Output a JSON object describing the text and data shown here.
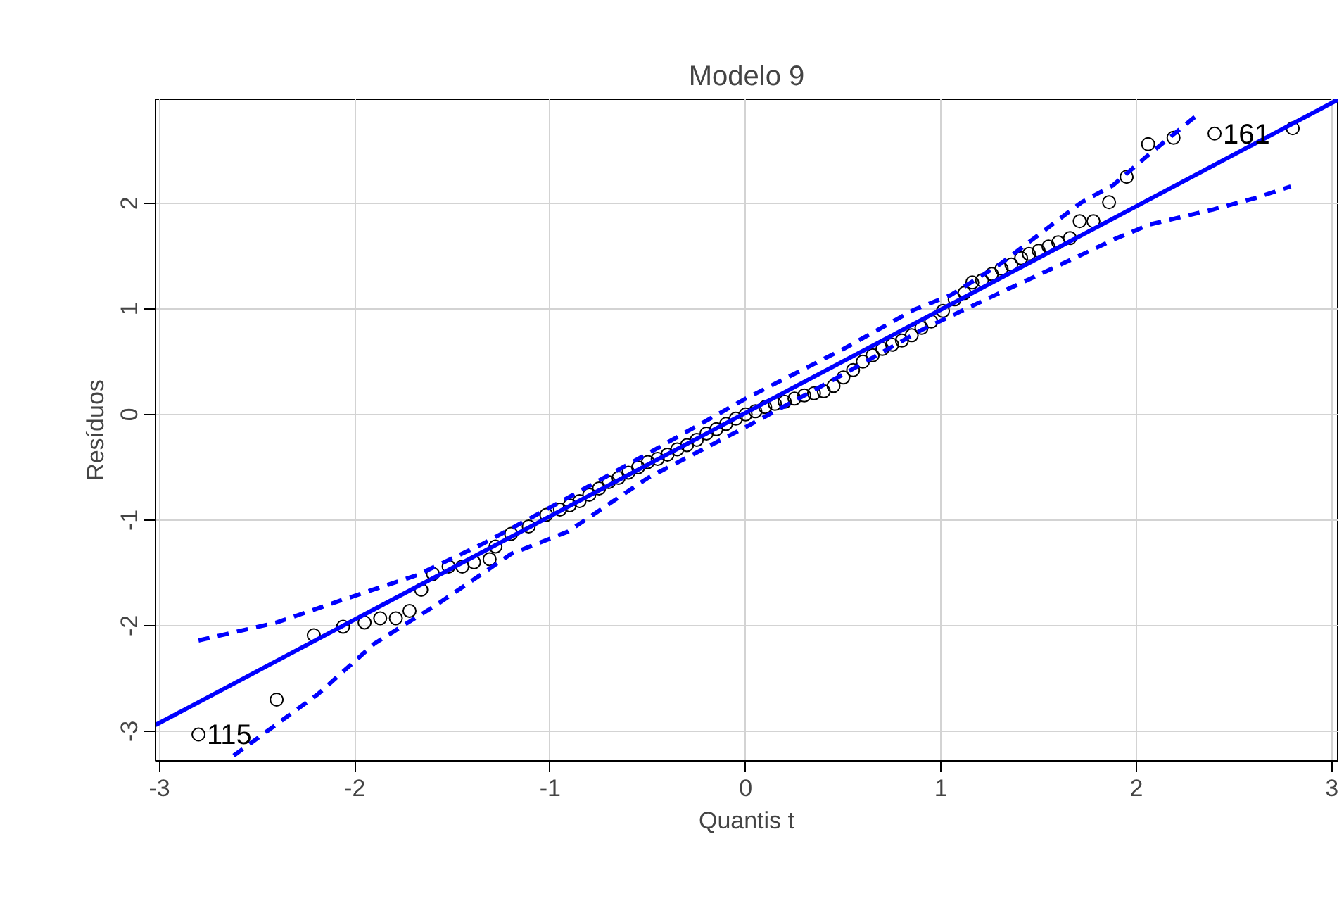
{
  "chart_data": {
    "type": "scatter",
    "title": "Modelo 9",
    "xlabel": "Quantis t",
    "ylabel": "Resíduos",
    "xlim": [
      -3.02,
      3.03
    ],
    "ylim": [
      -3.28,
      2.985
    ],
    "xticks": [
      -3,
      -2,
      -1,
      0,
      1,
      2,
      3
    ],
    "yticks": [
      -3,
      -2,
      -1,
      0,
      1,
      2
    ],
    "grid": true,
    "marker": "circle",
    "series": [
      {
        "color": "#000000",
        "x": [
          -2.8,
          -2.4,
          -2.21,
          -2.06,
          -1.95,
          -1.87,
          -1.79,
          -1.72,
          -1.66,
          -1.6,
          -1.52,
          -1.45,
          -1.39,
          -1.31,
          -1.28,
          -1.2,
          -1.11,
          -1.02,
          -0.95,
          -0.9,
          -0.85,
          -0.8,
          -0.75,
          -0.7,
          -0.65,
          -0.6,
          -0.55,
          -0.5,
          -0.45,
          -0.4,
          -0.35,
          -0.3,
          -0.25,
          -0.2,
          -0.15,
          -0.1,
          -0.05,
          0.0,
          0.05,
          0.1,
          0.15,
          0.2,
          0.25,
          0.3,
          0.35,
          0.4,
          0.45,
          0.5,
          0.55,
          0.6,
          0.65,
          0.7,
          0.75,
          0.8,
          0.85,
          0.9,
          0.95,
          1.01,
          1.07,
          1.12,
          1.16,
          1.21,
          1.26,
          1.31,
          1.36,
          1.41,
          1.45,
          1.5,
          1.55,
          1.6,
          1.66,
          1.71,
          1.78,
          1.86,
          1.95,
          2.06,
          2.19,
          2.4,
          2.8
        ],
        "values": [
          -3.03,
          -2.7,
          -2.09,
          -2.01,
          -1.97,
          -1.93,
          -1.93,
          -1.86,
          -1.66,
          -1.51,
          -1.44,
          -1.44,
          -1.4,
          -1.37,
          -1.25,
          -1.13,
          -1.06,
          -0.95,
          -0.9,
          -0.86,
          -0.82,
          -0.76,
          -0.7,
          -0.64,
          -0.6,
          -0.55,
          -0.5,
          -0.45,
          -0.42,
          -0.38,
          -0.33,
          -0.29,
          -0.24,
          -0.18,
          -0.14,
          -0.09,
          -0.04,
          0.0,
          0.03,
          0.07,
          0.1,
          0.12,
          0.15,
          0.18,
          0.2,
          0.22,
          0.27,
          0.35,
          0.42,
          0.5,
          0.56,
          0.62,
          0.66,
          0.7,
          0.75,
          0.82,
          0.88,
          0.98,
          1.09,
          1.15,
          1.25,
          1.27,
          1.33,
          1.38,
          1.42,
          1.48,
          1.52,
          1.55,
          1.59,
          1.63,
          1.67,
          1.83,
          1.83,
          2.01,
          2.25,
          2.56,
          2.62,
          2.66,
          2.71
        ]
      },
      {
        "type": "line",
        "color": "#0000ff",
        "line_style": "solid",
        "marker": "none",
        "x": [
          -3.02,
          3.03
        ],
        "values": [
          -2.94,
          2.98
        ]
      },
      {
        "type": "line",
        "color": "#0000ff",
        "line_style": "dashed",
        "marker": "none",
        "x": [
          -2.8,
          -2.4,
          -2.07,
          -1.68,
          -1.34,
          -1.0,
          -0.5,
          0.0,
          0.5,
          0.86,
          1.05,
          1.3,
          1.47,
          1.72,
          1.88,
          2.05,
          2.32
        ],
        "values": [
          -2.14,
          -1.97,
          -1.76,
          -1.52,
          -1.22,
          -0.88,
          -0.37,
          0.15,
          0.62,
          0.99,
          1.13,
          1.42,
          1.66,
          2.01,
          2.17,
          2.44,
          2.85
        ]
      },
      {
        "type": "line",
        "color": "#0000ff",
        "line_style": "dashed",
        "marker": "none",
        "x": [
          -2.62,
          -2.19,
          -1.9,
          -1.58,
          -1.2,
          -0.91,
          -0.5,
          0.0,
          0.5,
          0.9,
          1.23,
          1.59,
          1.9,
          2.07,
          2.39,
          2.61,
          2.79
        ],
        "values": [
          -3.23,
          -2.65,
          -2.17,
          -1.8,
          -1.32,
          -1.11,
          -0.6,
          -0.12,
          0.38,
          0.8,
          1.09,
          1.4,
          1.67,
          1.8,
          1.94,
          2.05,
          2.16
        ]
      }
    ],
    "annotations": [
      {
        "text": "115",
        "x": -2.8,
        "y": -3.03
      },
      {
        "text": "161",
        "x": 2.4,
        "y": 2.66
      }
    ]
  }
}
